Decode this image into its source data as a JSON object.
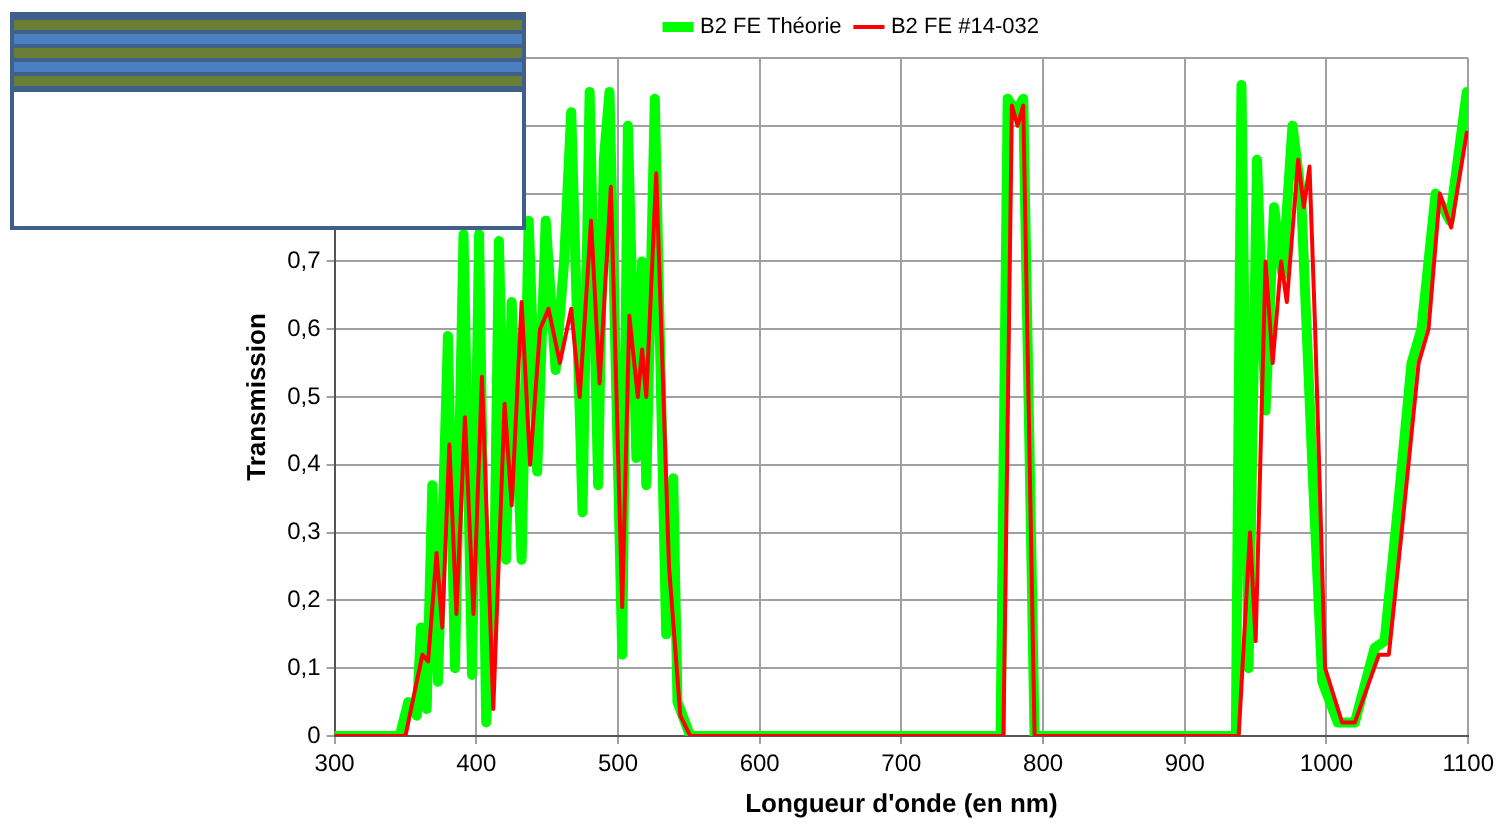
{
  "chart_data": {
    "type": "line",
    "xlabel": "Longueur d'onde (en nm)",
    "ylabel": "Transmission",
    "xlim": [
      300,
      1100
    ],
    "ylim": [
      0,
      1
    ],
    "xticks": [
      300,
      400,
      500,
      600,
      700,
      800,
      900,
      1000,
      1100
    ],
    "yticks": [
      0,
      {
        "value": 0.1,
        "label": "0,1"
      },
      {
        "value": 0.2,
        "label": "0,2"
      },
      {
        "value": 0.3,
        "label": "0,3"
      },
      {
        "value": 0.4,
        "label": "0,4"
      },
      {
        "value": 0.5,
        "label": "0,5"
      },
      {
        "value": 0.6,
        "label": "0,6"
      },
      {
        "value": 0.7,
        "label": "0,7"
      },
      {
        "value": 0.8,
        "label": null
      },
      {
        "value": 0.9,
        "label": null
      },
      {
        "value": 1,
        "label": null
      }
    ],
    "grid": true,
    "legend": "top",
    "marker": "none",
    "line_style": "solid",
    "series": [
      {
        "name": "B2 FE Théorie",
        "color": "#00ff00",
        "x": [
          300,
          346,
          352,
          358,
          361,
          365,
          369,
          373,
          380,
          385,
          391,
          397,
          402,
          407,
          413,
          416,
          421,
          425,
          432,
          437,
          443,
          449,
          456,
          462,
          467,
          475,
          480,
          486,
          490,
          494,
          500,
          503,
          507,
          513,
          517,
          520,
          526,
          534,
          539,
          542,
          551,
          600,
          700,
          770,
          775,
          781,
          786,
          794,
          850,
          936,
          940,
          945,
          951,
          957,
          963,
          969,
          976,
          982,
          990,
          997,
          1008,
          1020,
          1034,
          1041,
          1051,
          1060,
          1067,
          1077,
          1087,
          1099
        ],
        "values": [
          0,
          0,
          0.05,
          0.03,
          0.16,
          0.04,
          0.37,
          0.08,
          0.59,
          0.1,
          0.74,
          0.09,
          0.74,
          0.02,
          0.28,
          0.73,
          0.26,
          0.64,
          0.26,
          0.76,
          0.39,
          0.76,
          0.54,
          0.7,
          0.92,
          0.33,
          0.95,
          0.37,
          0.85,
          0.95,
          0.4,
          0.12,
          0.9,
          0.41,
          0.7,
          0.37,
          0.94,
          0.15,
          0.38,
          0.05,
          0,
          0,
          0,
          0,
          0.94,
          0.92,
          0.94,
          0,
          0,
          0,
          0.96,
          0.1,
          0.85,
          0.48,
          0.78,
          0.68,
          0.9,
          0.8,
          0.4,
          0.08,
          0.02,
          0.02,
          0.13,
          0.14,
          0.35,
          0.55,
          0.6,
          0.8,
          0.76,
          0.95
        ]
      },
      {
        "name": "B2 FE #14-032",
        "color": "#ff0000",
        "x": [
          300,
          350,
          355,
          362,
          366,
          372,
          376,
          381,
          386,
          392,
          398,
          404,
          412,
          420,
          425,
          432,
          438,
          445,
          451,
          459,
          467,
          473,
          481,
          487,
          495,
          503,
          508,
          514,
          517,
          520,
          527,
          536,
          544,
          551,
          600,
          700,
          772,
          778,
          782,
          786,
          794,
          850,
          938,
          946,
          950,
          957,
          962,
          968,
          972,
          980,
          984,
          988,
          992,
          999,
          1011,
          1020,
          1037,
          1044,
          1053,
          1065,
          1072,
          1080,
          1088,
          1099
        ],
        "values": [
          0,
          0,
          0.05,
          0.12,
          0.11,
          0.27,
          0.16,
          0.43,
          0.18,
          0.47,
          0.18,
          0.53,
          0.04,
          0.49,
          0.34,
          0.64,
          0.4,
          0.6,
          0.63,
          0.55,
          0.63,
          0.5,
          0.76,
          0.52,
          0.81,
          0.19,
          0.62,
          0.5,
          0.57,
          0.5,
          0.83,
          0.25,
          0.03,
          0,
          0,
          0,
          0,
          0.93,
          0.9,
          0.93,
          0,
          0,
          0,
          0.3,
          0.14,
          0.7,
          0.55,
          0.7,
          0.64,
          0.85,
          0.78,
          0.84,
          0.6,
          0.1,
          0.02,
          0.02,
          0.12,
          0.12,
          0.3,
          0.55,
          0.6,
          0.8,
          0.75,
          0.89
        ]
      }
    ]
  }
}
